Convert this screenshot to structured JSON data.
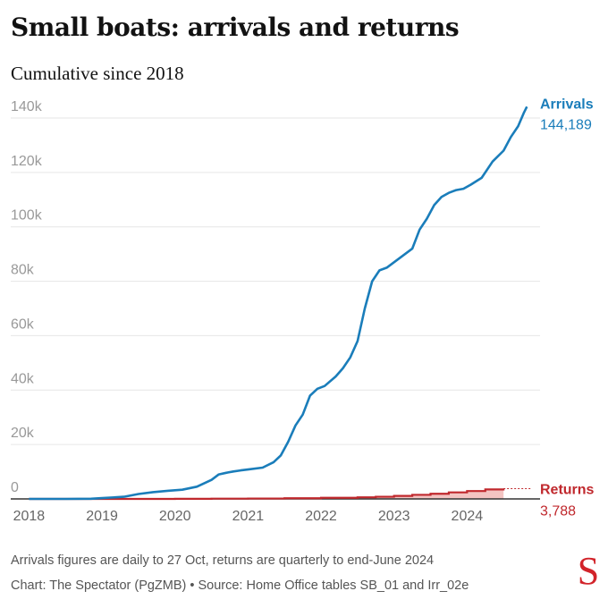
{
  "title": "Small boats: arrivals and returns",
  "subtitle": "Cumulative since 2018",
  "footnote": "Arrivals figures are daily to 27 Oct, returns are quarterly to end-June 2024",
  "credit": "Chart: The Spectator (PgZMB) • Source: Home Office tables SB_01 and Irr_02e",
  "logo_text": "S",
  "colors": {
    "arrivals": "#1a7dba",
    "returns": "#c0282d",
    "returns_fill": "#f3c4c2",
    "grid": "#e6e6e6",
    "tick": "#999999",
    "axis": "#333333"
  },
  "chart_data": {
    "type": "line",
    "title": "Small boats: arrivals and returns",
    "subtitle": "Cumulative since 2018",
    "xlabel": "",
    "ylabel": "",
    "xlim": [
      2017.75,
      2025.0
    ],
    "ylim": [
      0,
      140000
    ],
    "grid": true,
    "y_ticks": [
      {
        "value": 0,
        "label": "0"
      },
      {
        "value": 20000,
        "label": "20k"
      },
      {
        "value": 40000,
        "label": "40k"
      },
      {
        "value": 60000,
        "label": "60k"
      },
      {
        "value": 80000,
        "label": "80k"
      },
      {
        "value": 100000,
        "label": "100k"
      },
      {
        "value": 120000,
        "label": "120k"
      },
      {
        "value": 140000,
        "label": "140k"
      }
    ],
    "x_ticks": [
      {
        "value": 2018,
        "label": "2018"
      },
      {
        "value": 2019,
        "label": "2019"
      },
      {
        "value": 2020,
        "label": "2020"
      },
      {
        "value": 2021,
        "label": "2021"
      },
      {
        "value": 2022,
        "label": "2022"
      },
      {
        "value": 2023,
        "label": "2023"
      },
      {
        "value": 2024,
        "label": "2024"
      }
    ],
    "series": [
      {
        "name": "Arrivals",
        "end_label": "144,189",
        "x": [
          2018.0,
          2018.5,
          2018.85,
          2019.0,
          2019.3,
          2019.5,
          2019.7,
          2019.9,
          2020.1,
          2020.3,
          2020.5,
          2020.6,
          2020.7,
          2020.8,
          2020.9,
          2021.0,
          2021.2,
          2021.35,
          2021.45,
          2021.55,
          2021.65,
          2021.75,
          2021.85,
          2021.95,
          2022.05,
          2022.2,
          2022.3,
          2022.4,
          2022.5,
          2022.6,
          2022.7,
          2022.8,
          2022.9,
          2023.0,
          2023.1,
          2023.25,
          2023.35,
          2023.45,
          2023.55,
          2023.65,
          2023.75,
          2023.85,
          2023.95,
          2024.05,
          2024.2,
          2024.35,
          2024.5,
          2024.6,
          2024.7,
          2024.78,
          2024.82
        ],
        "values": [
          0,
          0,
          50,
          300,
          800,
          1800,
          2500,
          3000,
          3400,
          4500,
          7000,
          9000,
          9600,
          10100,
          10500,
          10800,
          11500,
          13500,
          16000,
          21000,
          27000,
          31000,
          38000,
          40500,
          41500,
          45000,
          48000,
          52000,
          58000,
          70000,
          80000,
          84000,
          85000,
          87000,
          89000,
          92000,
          99000,
          103000,
          108000,
          111000,
          112500,
          113500,
          114000,
          115500,
          118000,
          124000,
          128000,
          133000,
          137000,
          142000,
          144189
        ]
      },
      {
        "name": "Returns",
        "end_label": "3,788",
        "x": [
          2018.0,
          2019.0,
          2020.0,
          2020.5,
          2021.0,
          2021.5,
          2022.0,
          2022.5,
          2022.75,
          2023.0,
          2023.25,
          2023.5,
          2023.75,
          2024.0,
          2024.25,
          2024.5
        ],
        "values": [
          0,
          0,
          50,
          100,
          150,
          250,
          400,
          600,
          800,
          1100,
          1500,
          1900,
          2400,
          2900,
          3500,
          3788
        ],
        "projected_to_x": 2024.82
      }
    ]
  }
}
